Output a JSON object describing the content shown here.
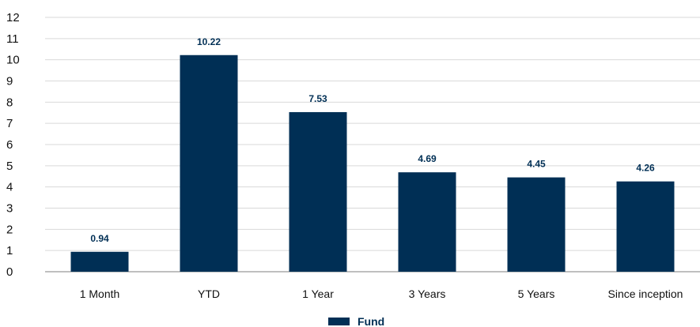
{
  "chart_data": {
    "type": "bar",
    "categories": [
      "1 Month",
      "YTD",
      "1 Year",
      "3 Years",
      "5 Years",
      "Since inception"
    ],
    "series": [
      {
        "name": "Fund",
        "values": [
          0.94,
          10.22,
          7.53,
          4.69,
          4.45,
          4.26
        ],
        "color": "#002f55"
      }
    ],
    "data_labels": [
      "0.94",
      "10.22",
      "7.53",
      "4.69",
      "4.45",
      "4.26"
    ],
    "y_ticks": [
      "0",
      "1",
      "2",
      "3",
      "4",
      "5",
      "6",
      "7",
      "8",
      "9",
      "10",
      "11",
      "12"
    ],
    "ylim": [
      0,
      12
    ],
    "grid": true,
    "gridline_color": "#d9d9d9",
    "baseline_color": "#bfbfbf",
    "legend": {
      "position": "bottom-center",
      "label": "Fund"
    },
    "title": "",
    "xlabel": "",
    "ylabel": ""
  }
}
